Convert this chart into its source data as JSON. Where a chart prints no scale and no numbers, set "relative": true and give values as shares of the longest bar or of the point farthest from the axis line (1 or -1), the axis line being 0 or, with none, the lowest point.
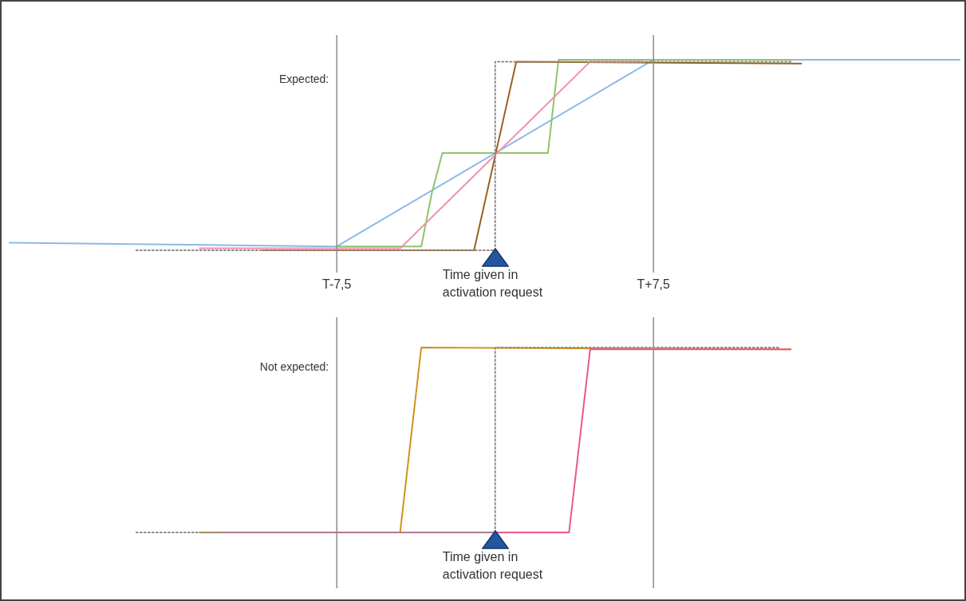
{
  "chart_data": [
    {
      "type": "line",
      "relative": true,
      "tick_labels": "x",
      "marker": "none",
      "categories": [
        null,
        null,
        null,
        null,
        null,
        null,
        null,
        null,
        null,
        null,
        null,
        null,
        null,
        null,
        null,
        null,
        null,
        null,
        null,
        null,
        null,
        null,
        null,
        null,
        null,
        null,
        null,
        null,
        null,
        null,
        null,
        "T-7,5",
        null,
        null,
        null,
        null,
        null,
        null,
        null,
        null,
        null,
        null,
        null,
        null,
        null,
        null,
        null,
        null,
        null,
        null,
        null,
        null,
        null,
        null,
        null,
        null,
        null,
        null,
        null,
        null,
        null,
        "T+7,5",
        null,
        null,
        null,
        null,
        null,
        null,
        null,
        null,
        null,
        null,
        null,
        null,
        null,
        null,
        null,
        null,
        null,
        null,
        null,
        null,
        null,
        null,
        null,
        null,
        null,
        null,
        null,
        null,
        null
      ],
      "series": [
        {
          "type": "step",
          "color": "#8c8c8c",
          "line_style": "dotted",
          "values": [
            null,
            null,
            null,
            null,
            null,
            null,
            null,
            null,
            null,
            null,
            null,
            null,
            0,
            null,
            null,
            null,
            null,
            null,
            null,
            null,
            null,
            null,
            null,
            null,
            null,
            null,
            null,
            null,
            null,
            null,
            null,
            null,
            null,
            null,
            null,
            null,
            null,
            null,
            null,
            null,
            null,
            null,
            null,
            null,
            null,
            null,
            0,
            null,
            null,
            null,
            null,
            null,
            null,
            null,
            null,
            null,
            null,
            null,
            null,
            null,
            null,
            null,
            null,
            null,
            null,
            null,
            null,
            null,
            null,
            null,
            null,
            null,
            null,
            null,
            0.99,
            null,
            null,
            null,
            null,
            null,
            null,
            null,
            null,
            null,
            null,
            null,
            null,
            null,
            null,
            null,
            null
          ]
        },
        {
          "color": "#ef8fae",
          "values": [
            null,
            null,
            null,
            null,
            null,
            null,
            null,
            null,
            null,
            null,
            null,
            null,
            null,
            null,
            null,
            null,
            null,
            null,
            0.01,
            null,
            null,
            null,
            null,
            null,
            null,
            null,
            null,
            null,
            null,
            null,
            null,
            null,
            null,
            null,
            null,
            null,
            null,
            0.01,
            null,
            null,
            null,
            null,
            null,
            null,
            null,
            null,
            null,
            null,
            null,
            null,
            null,
            null,
            null,
            null,
            null,
            0.99,
            null,
            null,
            null,
            null,
            0.99,
            null,
            null,
            null,
            null,
            null,
            null,
            null,
            null,
            null,
            null,
            null,
            null,
            null,
            null,
            null,
            null,
            null,
            null,
            null,
            null,
            null,
            null,
            null,
            null,
            null,
            null,
            null,
            null,
            null,
            null
          ]
        },
        {
          "color": "#9c5f1c",
          "values": [
            null,
            null,
            null,
            null,
            null,
            null,
            null,
            null,
            null,
            null,
            null,
            null,
            null,
            null,
            null,
            null,
            null,
            null,
            null,
            null,
            null,
            null,
            null,
            null,
            0,
            null,
            null,
            null,
            null,
            null,
            null,
            null,
            null,
            null,
            null,
            null,
            null,
            null,
            null,
            null,
            null,
            null,
            null,
            null,
            0,
            null,
            null,
            null,
            0.99,
            null,
            null,
            null,
            null,
            null,
            null,
            null,
            null,
            null,
            null,
            null,
            null,
            null,
            null,
            null,
            null,
            null,
            null,
            null,
            null,
            null,
            null,
            null,
            null,
            null,
            null,
            0.98,
            null,
            null,
            null,
            null,
            null,
            null,
            null,
            null,
            null,
            null,
            null,
            null,
            null,
            null,
            null
          ]
        },
        {
          "color": "#8cc56d",
          "values": [
            null,
            null,
            null,
            null,
            null,
            null,
            null,
            null,
            null,
            null,
            null,
            null,
            null,
            null,
            null,
            null,
            null,
            null,
            null,
            null,
            null,
            null,
            null,
            null,
            null,
            null,
            null,
            null,
            null,
            null,
            null,
            0.02,
            null,
            null,
            null,
            null,
            null,
            null,
            null,
            0.02,
            0.3,
            0.51,
            null,
            null,
            null,
            null,
            null,
            null,
            null,
            null,
            null,
            0.51,
            1,
            null,
            null,
            null,
            null,
            null,
            null,
            null,
            null,
            null,
            null,
            null,
            null,
            null,
            null,
            null,
            null,
            null,
            null,
            null,
            null,
            null,
            1,
            null,
            null,
            null,
            null,
            null,
            null,
            null,
            null,
            null,
            null,
            null,
            null,
            null,
            null,
            null,
            null
          ]
        },
        {
          "color": "#8db9e8",
          "values": [
            0.04,
            null,
            null,
            null,
            null,
            null,
            null,
            null,
            null,
            null,
            null,
            null,
            null,
            null,
            null,
            null,
            null,
            null,
            null,
            null,
            null,
            null,
            null,
            null,
            null,
            null,
            null,
            null,
            null,
            null,
            null,
            0.02,
            null,
            null,
            null,
            null,
            null,
            null,
            null,
            null,
            null,
            null,
            null,
            null,
            null,
            null,
            null,
            null,
            null,
            null,
            null,
            null,
            null,
            null,
            null,
            null,
            null,
            null,
            null,
            null,
            null,
            1,
            null,
            null,
            null,
            null,
            null,
            null,
            null,
            null,
            null,
            null,
            null,
            null,
            null,
            null,
            null,
            null,
            null,
            null,
            null,
            null,
            null,
            null,
            null,
            null,
            null,
            null,
            null,
            null,
            1
          ]
        }
      ],
      "ref_lines": [
        {
          "axis": "x",
          "value": "T-7,5",
          "color": "#8c8c8c"
        },
        {
          "axis": "x",
          "value": "T+7,5",
          "color": "#8c8c8c"
        }
      ],
      "annotations": [
        "Expected:",
        "Time given in activation request"
      ]
    },
    {
      "type": "line",
      "relative": true,
      "tick_labels": false,
      "marker": "none",
      "categories": [
        null,
        null,
        null,
        null,
        null,
        null,
        null,
        null,
        null,
        null,
        null,
        null,
        null,
        null,
        null,
        null,
        null,
        null,
        null,
        null,
        null,
        null,
        null,
        null,
        null,
        null,
        null,
        null,
        null,
        null,
        null,
        "T-7,5",
        null,
        null,
        null,
        null,
        null,
        null,
        null,
        null,
        null,
        null,
        null,
        null,
        null,
        null,
        null,
        null,
        null,
        null,
        null,
        null,
        null,
        null,
        null,
        null,
        null,
        null,
        null,
        null,
        null,
        "T+7,5",
        null,
        null,
        null,
        null,
        null,
        null,
        null,
        null,
        null,
        null,
        null,
        null,
        null,
        null,
        null,
        null,
        null,
        null,
        null,
        null,
        null,
        null,
        null,
        null,
        null,
        null,
        null,
        null,
        null
      ],
      "series": [
        {
          "type": "step",
          "color": "#8c8c8c",
          "line_style": "dotted",
          "values": [
            null,
            null,
            null,
            null,
            null,
            null,
            null,
            null,
            null,
            null,
            null,
            null,
            0,
            null,
            null,
            null,
            null,
            null,
            null,
            null,
            null,
            null,
            null,
            null,
            null,
            null,
            null,
            null,
            null,
            null,
            null,
            null,
            null,
            null,
            null,
            null,
            null,
            null,
            null,
            null,
            null,
            null,
            null,
            null,
            null,
            null,
            0,
            null,
            null,
            null,
            null,
            null,
            null,
            null,
            null,
            null,
            null,
            null,
            null,
            null,
            null,
            null,
            null,
            null,
            null,
            null,
            null,
            null,
            null,
            null,
            null,
            null,
            null,
            1,
            null,
            null,
            null,
            null,
            null,
            null,
            null,
            null,
            null,
            null,
            null,
            null,
            null,
            null,
            null,
            null,
            null
          ]
        },
        {
          "color": "#e8588c",
          "values": [
            null,
            null,
            null,
            null,
            null,
            null,
            null,
            null,
            null,
            null,
            null,
            null,
            null,
            null,
            null,
            null,
            null,
            null,
            null,
            null,
            0,
            null,
            null,
            null,
            null,
            null,
            null,
            null,
            null,
            null,
            null,
            null,
            null,
            null,
            null,
            null,
            null,
            null,
            null,
            null,
            null,
            null,
            null,
            null,
            null,
            null,
            null,
            null,
            null,
            null,
            null,
            null,
            null,
            0,
            null,
            0.99,
            null,
            null,
            null,
            null,
            null,
            null,
            null,
            null,
            null,
            null,
            null,
            null,
            null,
            null,
            null,
            null,
            null,
            null,
            0.99,
            null,
            null,
            null,
            null,
            null,
            null,
            null,
            null,
            null,
            null,
            null,
            null,
            null,
            null,
            null,
            null
          ]
        },
        {
          "color": "#d4901c",
          "values": [
            null,
            null,
            null,
            null,
            null,
            null,
            null,
            null,
            null,
            null,
            null,
            null,
            null,
            null,
            null,
            null,
            null,
            null,
            0,
            null,
            null,
            null,
            null,
            null,
            null,
            null,
            null,
            null,
            null,
            null,
            null,
            null,
            null,
            null,
            null,
            null,
            null,
            0,
            null,
            1,
            null,
            null,
            null,
            null,
            null,
            null,
            null,
            null,
            null,
            null,
            null,
            null,
            null,
            null,
            null,
            null,
            null,
            null,
            null,
            null,
            null,
            null,
            null,
            null,
            null,
            null,
            null,
            null,
            null,
            null,
            null,
            null,
            null,
            null,
            0.99,
            null,
            null,
            null,
            null,
            null,
            null,
            null,
            null,
            null,
            null,
            null,
            null,
            null,
            null,
            null,
            null
          ]
        }
      ],
      "ref_lines": [
        {
          "axis": "x",
          "value": "T-7,5",
          "color": "#8c8c8c"
        },
        {
          "axis": "x",
          "value": "T+7,5",
          "color": "#8c8c8c"
        }
      ],
      "annotations": [
        "Not expected:",
        "Time given in activation request"
      ]
    }
  ]
}
